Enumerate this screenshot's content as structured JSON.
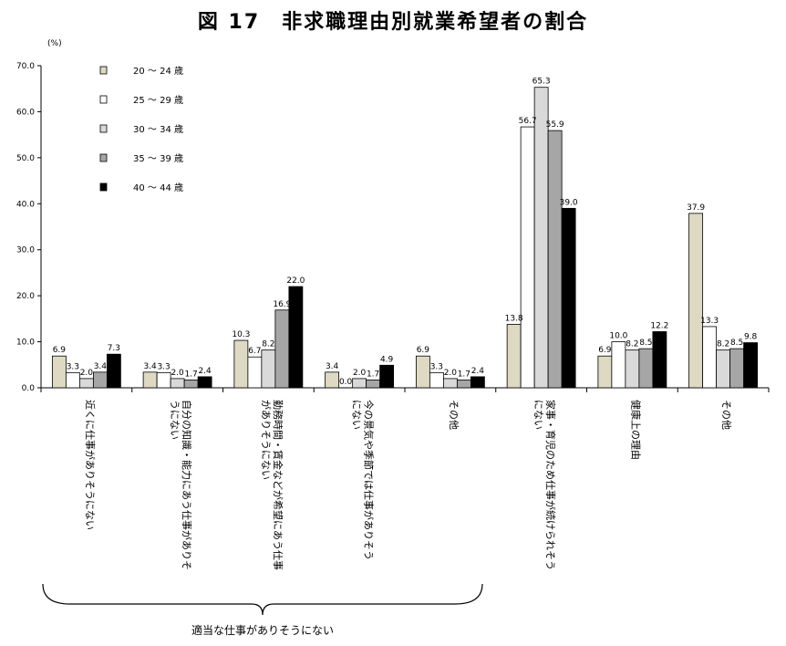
{
  "chart_data": {
    "type": "bar",
    "title": "図 17　非求職理由別就業希望者の割合",
    "ylabel": "(%)",
    "ylim": [
      0,
      70
    ],
    "yticks": [
      "0.0",
      "10.0",
      "20.0",
      "30.0",
      "40.0",
      "50.0",
      "60.0",
      "70.0"
    ],
    "grid": false,
    "legend_position": "top-left",
    "categories": [
      [
        "近くに仕事がありそうにない"
      ],
      [
        "自分の知識・能力にあう仕事がありそ",
        "うにない"
      ],
      [
        "勤務時間・賃金などが希望にあう仕事",
        "がありそうにない"
      ],
      [
        "今の景気や季節では仕事がありそう",
        "にない"
      ],
      [
        "その他"
      ],
      [
        "家事・育児のため仕事が続けられそう",
        "にない"
      ],
      [
        "健康上の理由"
      ],
      [
        "その他"
      ]
    ],
    "series": [
      {
        "name": "20 〜 24  歳",
        "color": "#ddd9c3",
        "values": [
          6.9,
          3.4,
          10.3,
          3.4,
          6.9,
          13.8,
          6.9,
          37.9
        ],
        "labels": [
          "6.9",
          "3.4",
          "10.3",
          "3.4",
          "6.9",
          "13.8",
          "6.9",
          "37.9"
        ]
      },
      {
        "name": "25 〜 29  歳",
        "color": "#ffffff",
        "values": [
          3.3,
          3.3,
          6.7,
          0.0,
          3.3,
          56.7,
          10.0,
          13.3
        ],
        "labels": [
          "3.3",
          "3.3",
          "6.7",
          "0.0",
          "3.3",
          "56.7",
          "10.0",
          "13.3"
        ]
      },
      {
        "name": "30 〜 34  歳",
        "color": "#d9d9d9",
        "values": [
          2.0,
          2.0,
          8.2,
          2.0,
          2.0,
          65.3,
          8.2,
          8.2
        ],
        "labels": [
          "2.0",
          "2.0",
          "8.2",
          "2.0",
          "2.0",
          "65.3",
          "8.2",
          "8.2"
        ]
      },
      {
        "name": "35 〜 39  歳",
        "color": "#a6a6a6",
        "values": [
          3.4,
          1.7,
          16.9,
          1.7,
          1.7,
          55.9,
          8.5,
          8.5
        ],
        "labels": [
          "3.4",
          "1.7",
          "16.9",
          "1.7",
          "1.7",
          "55.9",
          "8.5",
          "8.5"
        ]
      },
      {
        "name": "40 〜 44  歳",
        "color": "#000000",
        "values": [
          7.3,
          2.4,
          22.0,
          4.9,
          2.4,
          39.0,
          12.2,
          9.8
        ],
        "labels": [
          "7.3",
          "2.4",
          "22.0",
          "4.9",
          "2.4",
          "39.0",
          "12.2",
          "9.8"
        ]
      }
    ],
    "brace_annotation": "適当な仕事がありそうにない"
  }
}
